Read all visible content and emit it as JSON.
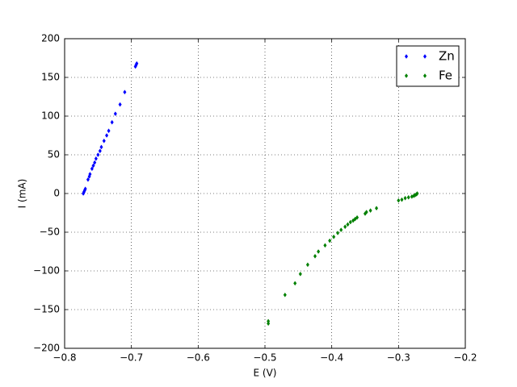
{
  "chart_data": {
    "type": "scatter",
    "xlabel": "E (V)",
    "ylabel": "I (mA)",
    "xlim": [
      -0.8,
      -0.2
    ],
    "xticks": [
      {
        "value": -0.8,
        "label": "−0.8"
      },
      {
        "value": -0.7,
        "label": "−0.7"
      },
      {
        "value": -0.6,
        "label": "−0.6"
      },
      {
        "value": -0.5,
        "label": "−0.5"
      },
      {
        "value": -0.4,
        "label": "−0.4"
      },
      {
        "value": -0.3,
        "label": "−0.3"
      },
      {
        "value": -0.2,
        "label": "−0.2"
      }
    ],
    "ylim": [
      -200,
      200
    ],
    "yticks": [
      {
        "value": -200,
        "label": "−200"
      },
      {
        "value": -150,
        "label": "−150"
      },
      {
        "value": -100,
        "label": "−100"
      },
      {
        "value": -50,
        "label": "−50"
      },
      0,
      50,
      100,
      150,
      200
    ],
    "grid": true,
    "legend": "upper right",
    "series": [
      {
        "name": "Zn",
        "color": "#0000ff",
        "x": [
          -0.772,
          -0.771,
          -0.77,
          -0.769,
          -0.765,
          -0.763,
          -0.762,
          -0.759,
          -0.757,
          -0.755,
          -0.753,
          -0.75,
          -0.747,
          -0.745,
          -0.741,
          -0.737,
          -0.734,
          -0.729,
          -0.724,
          -0.717,
          -0.71,
          -0.694,
          -0.693,
          -0.692
        ],
        "values": [
          0,
          2,
          4,
          6,
          18,
          22,
          25,
          32,
          36,
          40,
          45,
          50,
          55,
          60,
          68,
          75,
          81,
          92,
          103,
          115,
          131,
          164,
          166,
          168
        ]
      },
      {
        "name": "Fe",
        "color": "#008000",
        "x": [
          -0.495,
          -0.495,
          -0.47,
          -0.455,
          -0.447,
          -0.436,
          -0.425,
          -0.42,
          -0.41,
          -0.403,
          -0.397,
          -0.391,
          -0.386,
          -0.38,
          -0.376,
          -0.372,
          -0.368,
          -0.365,
          -0.362,
          -0.35,
          -0.348,
          -0.342,
          -0.333,
          -0.3,
          -0.295,
          -0.29,
          -0.285,
          -0.28,
          -0.277,
          -0.275,
          -0.273,
          -0.272
        ],
        "values": [
          -165,
          -168,
          -131,
          -116,
          -104,
          -92,
          -81,
          -75,
          -67,
          -61,
          -56,
          -51,
          -47,
          -43,
          -40,
          -37,
          -35,
          -33,
          -31,
          -26,
          -24,
          -22,
          -19,
          -9,
          -8,
          -6,
          -5,
          -4,
          -3,
          -2,
          -1,
          0
        ]
      }
    ]
  }
}
